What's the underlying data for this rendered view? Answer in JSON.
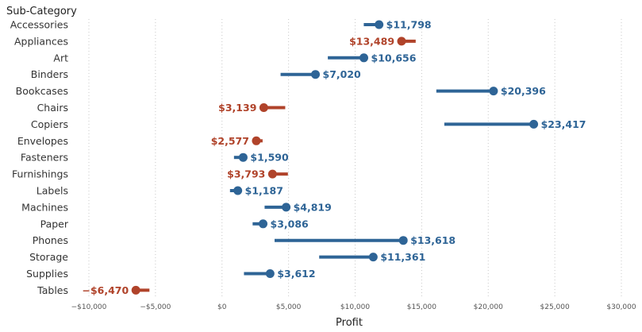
{
  "chart_data": {
    "type": "dumbbell",
    "category_header": "Sub-Category",
    "xlabel": "Profit",
    "xlim": [
      -10000,
      30000
    ],
    "x_ticks": [
      -10000,
      -5000,
      0,
      5000,
      10000,
      15000,
      20000,
      25000,
      30000
    ],
    "x_tick_labels": [
      "−$10,000",
      "−$5,000",
      "$0",
      "$5,000",
      "$10,000",
      "$15,000",
      "$20,000",
      "$25,000",
      "$30,000"
    ],
    "grid": "vertical-dotted",
    "colors": {
      "positive": "#2e6496",
      "negative": "#b0432a"
    },
    "rows": [
      {
        "category": "Accessories",
        "start": 10650,
        "value": 11798,
        "label": "$11,798",
        "status": "positive"
      },
      {
        "category": "Appliances",
        "start": 14550,
        "value": 13489,
        "label": "$13,489",
        "status": "negative"
      },
      {
        "category": "Art",
        "start": 7950,
        "value": 10656,
        "label": "$10,656",
        "status": "positive"
      },
      {
        "category": "Binders",
        "start": 4400,
        "value": 7020,
        "label": "$7,020",
        "status": "positive"
      },
      {
        "category": "Bookcases",
        "start": 16100,
        "value": 20396,
        "label": "$20,396",
        "status": "positive"
      },
      {
        "category": "Chairs",
        "start": 4750,
        "value": 3139,
        "label": "$3,139",
        "status": "negative"
      },
      {
        "category": "Copiers",
        "start": 16700,
        "value": 23417,
        "label": "$23,417",
        "status": "positive"
      },
      {
        "category": "Envelopes",
        "start": 3050,
        "value": 2577,
        "label": "$2,577",
        "status": "negative"
      },
      {
        "category": "Fasteners",
        "start": 900,
        "value": 1590,
        "label": "$1,590",
        "status": "positive"
      },
      {
        "category": "Furnishings",
        "start": 4950,
        "value": 3793,
        "label": "$3,793",
        "status": "negative"
      },
      {
        "category": "Labels",
        "start": 600,
        "value": 1187,
        "label": "$1,187",
        "status": "positive"
      },
      {
        "category": "Machines",
        "start": 3200,
        "value": 4819,
        "label": "$4,819",
        "status": "positive"
      },
      {
        "category": "Paper",
        "start": 2300,
        "value": 3086,
        "label": "$3,086",
        "status": "positive"
      },
      {
        "category": "Phones",
        "start": 3950,
        "value": 13618,
        "label": "$13,618",
        "status": "positive"
      },
      {
        "category": "Storage",
        "start": 7300,
        "value": 11361,
        "label": "$11,361",
        "status": "positive"
      },
      {
        "category": "Supplies",
        "start": 1650,
        "value": 3612,
        "label": "$3,612",
        "status": "positive"
      },
      {
        "category": "Tables",
        "start": -5450,
        "value": -6470,
        "label": "−$6,470",
        "status": "negative"
      }
    ]
  }
}
